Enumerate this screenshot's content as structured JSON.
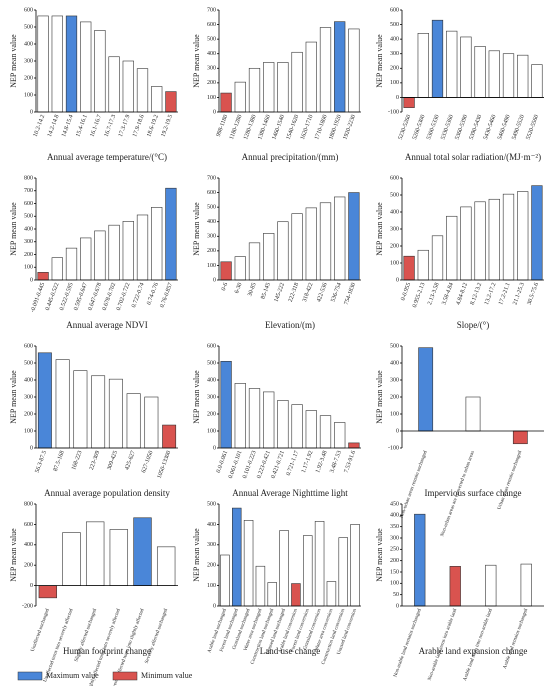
{
  "chart_data": [
    {
      "type": "bar",
      "xlabel": "Annual average temperature/(°C)",
      "ylabel": "NEP mean value",
      "categories": [
        "10.2-14.2",
        "14.2-14.8",
        "14.8-15.4",
        "15.4-16.1",
        "16.1-16.7",
        "16.7-17.3",
        "17.3-17.9",
        "17.9-18.6",
        "18.6-19.2",
        "19.2-19.5"
      ],
      "values": [
        565,
        565,
        565,
        530,
        480,
        325,
        300,
        255,
        150,
        120
      ],
      "colors": [
        "#ffffff",
        "#ffffff",
        "#4a86d8",
        "#ffffff",
        "#ffffff",
        "#ffffff",
        "#ffffff",
        "#ffffff",
        "#ffffff",
        "#d9534f"
      ],
      "ylim": [
        0,
        600
      ],
      "yticks": [
        0,
        100,
        200,
        300,
        400,
        500,
        600
      ]
    },
    {
      "type": "bar",
      "xlabel": "Annual precipitation/(mm)",
      "ylabel": "NEP mean value",
      "categories": [
        "998-1180",
        "1180-1280",
        "1280-1380",
        "1380-1460",
        "1460-1540",
        "1540-1620",
        "1620-1710",
        "1710-1800",
        "1800-1920",
        "1920-2230"
      ],
      "values": [
        130,
        205,
        300,
        340,
        340,
        410,
        480,
        580,
        620,
        570
      ],
      "colors": [
        "#d9534f",
        "#ffffff",
        "#ffffff",
        "#ffffff",
        "#ffffff",
        "#ffffff",
        "#ffffff",
        "#ffffff",
        "#4a86d8",
        "#ffffff"
      ],
      "ylim": [
        0,
        700
      ],
      "yticks": [
        0,
        100,
        200,
        300,
        400,
        500,
        600,
        700
      ]
    },
    {
      "type": "bar",
      "xlabel": "Annual total solar radiation/(MJ·m⁻²)",
      "ylabel": "NEP mean value",
      "categories": [
        "5230-5260",
        "5260-5300",
        "5300-5330",
        "5330-5360",
        "5360-5390",
        "5390-5430",
        "5430-5460",
        "5460-5490",
        "5490-5520",
        "5520-5560"
      ],
      "values": [
        -70,
        440,
        530,
        455,
        415,
        350,
        320,
        300,
        290,
        225
      ],
      "colors": [
        "#d9534f",
        "#ffffff",
        "#4a86d8",
        "#ffffff",
        "#ffffff",
        "#ffffff",
        "#ffffff",
        "#ffffff",
        "#ffffff",
        "#ffffff"
      ],
      "ylim": [
        -100,
        600
      ],
      "yticks": [
        -100,
        0,
        100,
        200,
        300,
        400,
        500,
        600
      ]
    },
    {
      "type": "bar",
      "xlabel": "Annual average NDVI",
      "ylabel": "NEP mean value",
      "categories": [
        "-0.091-0.445",
        "0.445-0.522",
        "0.522-0.595",
        "0.595-0.647",
        "0.647-0.678",
        "0.678-0.702",
        "0.702-0.722",
        "0.722-0.74",
        "0.74-0.76",
        "0.76-0.857"
      ],
      "values": [
        60,
        175,
        250,
        330,
        385,
        430,
        460,
        510,
        570,
        720
      ],
      "colors": [
        "#d9534f",
        "#ffffff",
        "#ffffff",
        "#ffffff",
        "#ffffff",
        "#ffffff",
        "#ffffff",
        "#ffffff",
        "#ffffff",
        "#4a86d8"
      ],
      "ylim": [
        0,
        800
      ],
      "yticks": [
        0,
        100,
        200,
        300,
        400,
        500,
        600,
        700,
        800
      ]
    },
    {
      "type": "bar",
      "xlabel": "Elevation/(m)",
      "ylabel": "NEP mean value",
      "categories": [
        "0-6",
        "6-30",
        "30-85",
        "85-145",
        "145-222",
        "222-318",
        "318-422",
        "422-536",
        "536-754",
        "754-1830"
      ],
      "values": [
        125,
        160,
        255,
        320,
        400,
        455,
        495,
        530,
        570,
        600
      ],
      "colors": [
        "#d9534f",
        "#ffffff",
        "#ffffff",
        "#ffffff",
        "#ffffff",
        "#ffffff",
        "#ffffff",
        "#ffffff",
        "#ffffff",
        "#4a86d8"
      ],
      "ylim": [
        0,
        700
      ],
      "yticks": [
        0,
        100,
        200,
        300,
        400,
        500,
        600,
        700
      ]
    },
    {
      "type": "bar",
      "xlabel": "Slope/(°)",
      "ylabel": "NEP mean value",
      "categories": [
        "0-0.955",
        "0.955-2.13",
        "2.13-3.58",
        "3.58-4.84",
        "4.84-8.12",
        "8.12-13.2",
        "13.2-17.2",
        "17.2-21.1",
        "21.1-25.3",
        "30.5-75.6"
      ],
      "values": [
        140,
        175,
        260,
        375,
        430,
        460,
        475,
        505,
        520,
        555
      ],
      "colors": [
        "#d9534f",
        "#ffffff",
        "#ffffff",
        "#ffffff",
        "#ffffff",
        "#ffffff",
        "#ffffff",
        "#ffffff",
        "#ffffff",
        "#4a86d8"
      ],
      "ylim": [
        0,
        600
      ],
      "yticks": [
        0,
        100,
        200,
        300,
        400,
        500,
        600
      ]
    },
    {
      "type": "bar",
      "xlabel": "Annual average population density",
      "ylabel": "NEP mean value",
      "categories": [
        "56.3-87.5",
        "87.5-168",
        "168-223",
        "223-309",
        "309-425",
        "425-627",
        "627-1050",
        "1050-13300"
      ],
      "values": [
        560,
        520,
        455,
        425,
        405,
        320,
        300,
        135
      ],
      "colors": [
        "#4a86d8",
        "#ffffff",
        "#ffffff",
        "#ffffff",
        "#ffffff",
        "#ffffff",
        "#ffffff",
        "#d9534f"
      ],
      "ylim": [
        0,
        600
      ],
      "yticks": [
        0,
        100,
        200,
        300,
        400,
        500,
        600
      ]
    },
    {
      "type": "bar",
      "xlabel": "Annual Average Nighttime light",
      "ylabel": "NEP mean value",
      "categories": [
        "0.0-0.061",
        "0.061-0.101",
        "0.101-0.223",
        "0.223-0.421",
        "0.421-0.721",
        "0.721-1.17",
        "1.17-1.92",
        "1.92-3.48",
        "3.48-7.53",
        "7.53-91.6"
      ],
      "values": [
        510,
        380,
        350,
        330,
        280,
        255,
        220,
        190,
        150,
        30
      ],
      "colors": [
        "#4a86d8",
        "#ffffff",
        "#ffffff",
        "#ffffff",
        "#ffffff",
        "#ffffff",
        "#ffffff",
        "#ffffff",
        "#ffffff",
        "#d9534f"
      ],
      "ylim": [
        0,
        600
      ],
      "yticks": [
        0,
        100,
        200,
        300,
        400,
        500,
        600
      ]
    },
    {
      "type": "bar",
      "xlabel": "Impervious surface change",
      "ylabel": "NEP mean value",
      "categories": [
        "Non-urban areas remain unchanged",
        "Non-urban areas are converted to urban areas",
        "Urban areas remain unchanged"
      ],
      "values": [
        490,
        200,
        -75
      ],
      "colors": [
        "#4a86d8",
        "#ffffff",
        "#d9534f"
      ],
      "ylim": [
        -100,
        500
      ],
      "yticks": [
        -100,
        0,
        100,
        200,
        300,
        400,
        500
      ]
    },
    {
      "type": "bar",
      "xlabel": "Human footprint change",
      "ylabel": "NEP mean value",
      "categories": [
        "Unaffected unchanged",
        "Unaffected turns into severely affected",
        "Slightly affected unchanged",
        "Slightly affected turns into severely affected",
        "Severely affected turns into slightly affected",
        "Severely affected unchanged"
      ],
      "values": [
        -120,
        520,
        625,
        550,
        665,
        380
      ],
      "colors": [
        "#d9534f",
        "#ffffff",
        "#ffffff",
        "#ffffff",
        "#4a86d8",
        "#ffffff"
      ],
      "ylim": [
        -200,
        800
      ],
      "yticks": [
        -200,
        0,
        200,
        400,
        600,
        800
      ]
    },
    {
      "type": "bar",
      "xlabel": "Land use change",
      "ylabel": "NEP mean value",
      "categories": [
        "Arable land unchanged",
        "Forest land unchanged",
        "Grassland unchanged",
        "Water area unchanged",
        "Construction land unchanged",
        "Unused land unchanged",
        "Arable land conversion",
        "Forest land conversion",
        "Grassland conversion",
        "Water area conversion",
        "Construction land conversion",
        "Unused land conversion"
      ],
      "values": [
        250,
        480,
        420,
        195,
        115,
        370,
        110,
        345,
        415,
        120,
        335,
        400
      ],
      "colors": [
        "#ffffff",
        "#4a86d8",
        "#ffffff",
        "#ffffff",
        "#ffffff",
        "#ffffff",
        "#d9534f",
        "#ffffff",
        "#ffffff",
        "#ffffff",
        "#ffffff",
        "#ffffff"
      ],
      "ylim": [
        0,
        500
      ],
      "yticks": [
        0,
        100,
        200,
        300,
        400,
        500
      ]
    },
    {
      "type": "bar",
      "xlabel": "Arable land expansion change",
      "ylabel": "NEP mean value",
      "categories": [
        "Non-arable land remains unchanged",
        "Non-arable land turns into arable land",
        "Arable land turns into non-arable land",
        "Arable land remains unchanged"
      ],
      "values": [
        405,
        175,
        180,
        185
      ],
      "colors": [
        "#4a86d8",
        "#d9534f",
        "#ffffff",
        "#ffffff"
      ],
      "ylim": [
        0,
        450
      ],
      "yticks": [
        0,
        50,
        100,
        150,
        200,
        250,
        300,
        350,
        400,
        450
      ]
    }
  ],
  "legend": [
    {
      "name": "Maximum value",
      "color": "#4a86d8"
    },
    {
      "name": "Minimum value",
      "color": "#d9534f"
    }
  ]
}
